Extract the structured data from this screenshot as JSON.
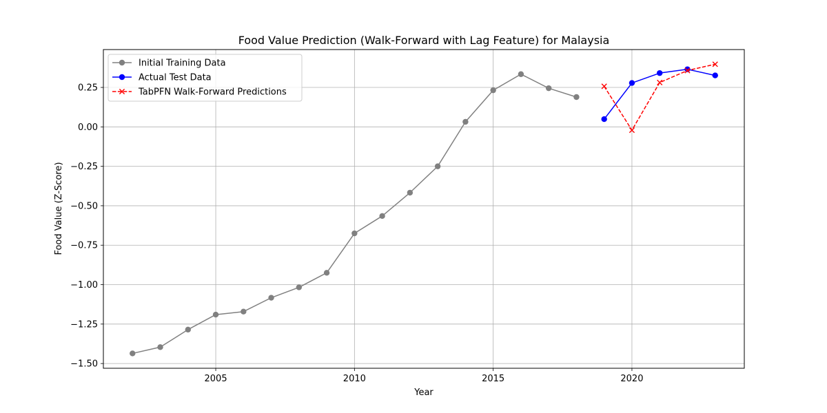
{
  "chart_data": {
    "type": "line",
    "title": "Food Value Prediction (Walk-Forward with Lag Feature) for Malaysia",
    "xlabel": "Year",
    "ylabel": "Food Value (Z-Score)",
    "xlim": [
      2000.95,
      2024.05
    ],
    "ylim": [
      -1.53,
      0.49
    ],
    "xticks": [
      2005,
      2010,
      2015,
      2020
    ],
    "yticks": [
      -1.5,
      -1.25,
      -1.0,
      -0.75,
      -0.5,
      -0.25,
      0.0,
      0.25
    ],
    "ytick_labels": [
      "−1.50",
      "−1.25",
      "−1.00",
      "−0.75",
      "−0.50",
      "−0.25",
      "0.00",
      "0.25"
    ],
    "grid": true,
    "legend_position": "top-left",
    "series": [
      {
        "name": "Initial Training Data",
        "color": "#808080",
        "line_style": "solid",
        "marker": "circle",
        "x": [
          2002,
          2003,
          2004,
          2005,
          2006,
          2007,
          2008,
          2009,
          2010,
          2011,
          2012,
          2013,
          2014,
          2015,
          2016,
          2017,
          2018
        ],
        "y": [
          -1.436,
          -1.396,
          -1.285,
          -1.19,
          -1.171,
          -1.083,
          -1.017,
          -0.925,
          -0.675,
          -0.565,
          -0.417,
          -0.25,
          0.032,
          0.232,
          0.334,
          0.245,
          0.189
        ]
      },
      {
        "name": "Actual Test Data",
        "color": "#0000ff",
        "line_style": "solid",
        "marker": "circle",
        "x": [
          2019,
          2020,
          2021,
          2022,
          2023
        ],
        "y": [
          0.049,
          0.278,
          0.341,
          0.365,
          0.326
        ]
      },
      {
        "name": "TabPFN Walk-Forward Predictions",
        "color": "#ff0000",
        "line_style": "dashed",
        "marker": "x",
        "x": [
          2019,
          2020,
          2021,
          2022,
          2023
        ],
        "y": [
          0.257,
          -0.021,
          0.281,
          0.357,
          0.397
        ]
      }
    ]
  }
}
